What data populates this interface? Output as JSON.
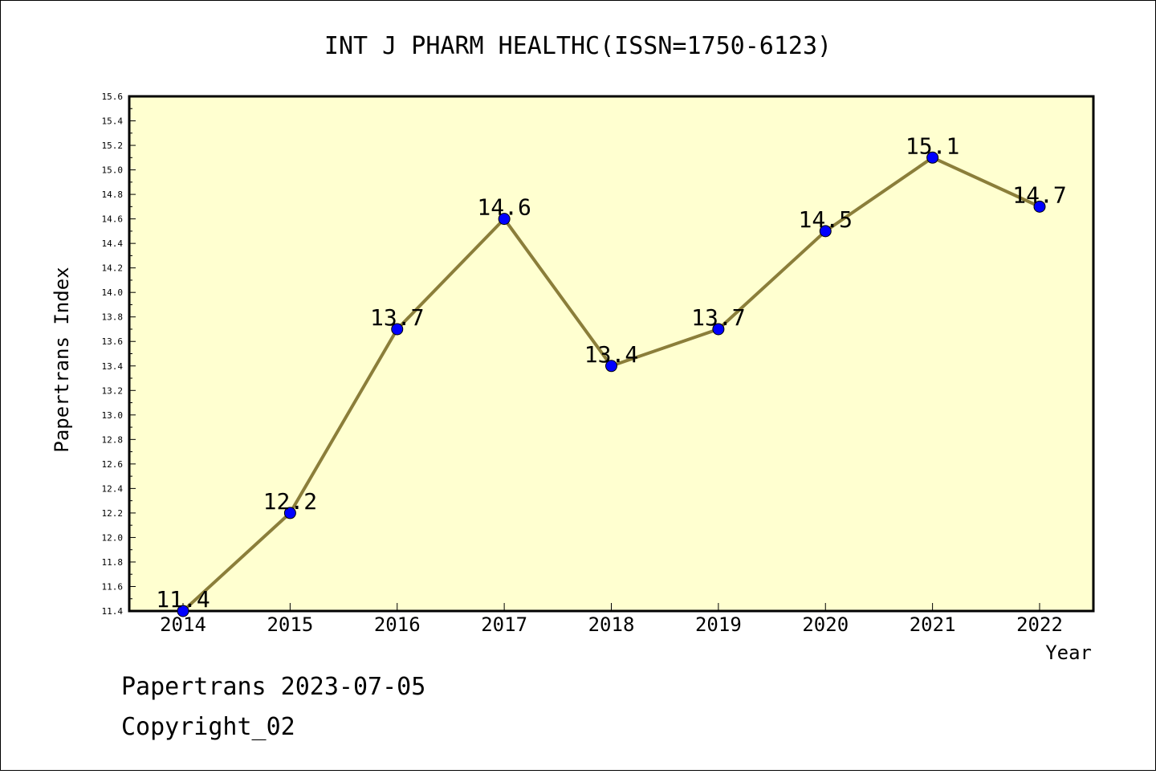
{
  "chart_data": {
    "type": "line",
    "title": "INT J PHARM HEALTHC(ISSN=1750-6123)",
    "xlabel": "Year",
    "ylabel": "Papertrans Index",
    "categories": [
      "2014",
      "2015",
      "2016",
      "2017",
      "2018",
      "2019",
      "2020",
      "2021",
      "2022"
    ],
    "series": [
      {
        "values": [
          11.4,
          12.2,
          13.7,
          14.6,
          13.4,
          13.7,
          14.5,
          15.1,
          14.7
        ],
        "data_labels": [
          "11.4",
          "12.2",
          "13.7",
          "14.6",
          "13.4",
          "13.7",
          "14.5",
          "15.1",
          "14.7"
        ]
      }
    ],
    "ylim": [
      11.4,
      15.6
    ],
    "yticks": [
      "11.4",
      "11.6",
      "11.8",
      "12.0",
      "12.2",
      "12.4",
      "12.6",
      "12.8",
      "13.0",
      "13.2",
      "13.4",
      "13.6",
      "13.8",
      "14.0",
      "14.2",
      "14.4",
      "14.6",
      "14.8",
      "15.0",
      "15.2",
      "15.4",
      "15.6"
    ],
    "grid": false,
    "colors": {
      "plot_background": "#ffffd0",
      "line": "#8b7e3a",
      "marker": "#0000ff"
    }
  },
  "footer": {
    "line1": "Papertrans 2023-07-05",
    "line2": "Copyright_02"
  }
}
